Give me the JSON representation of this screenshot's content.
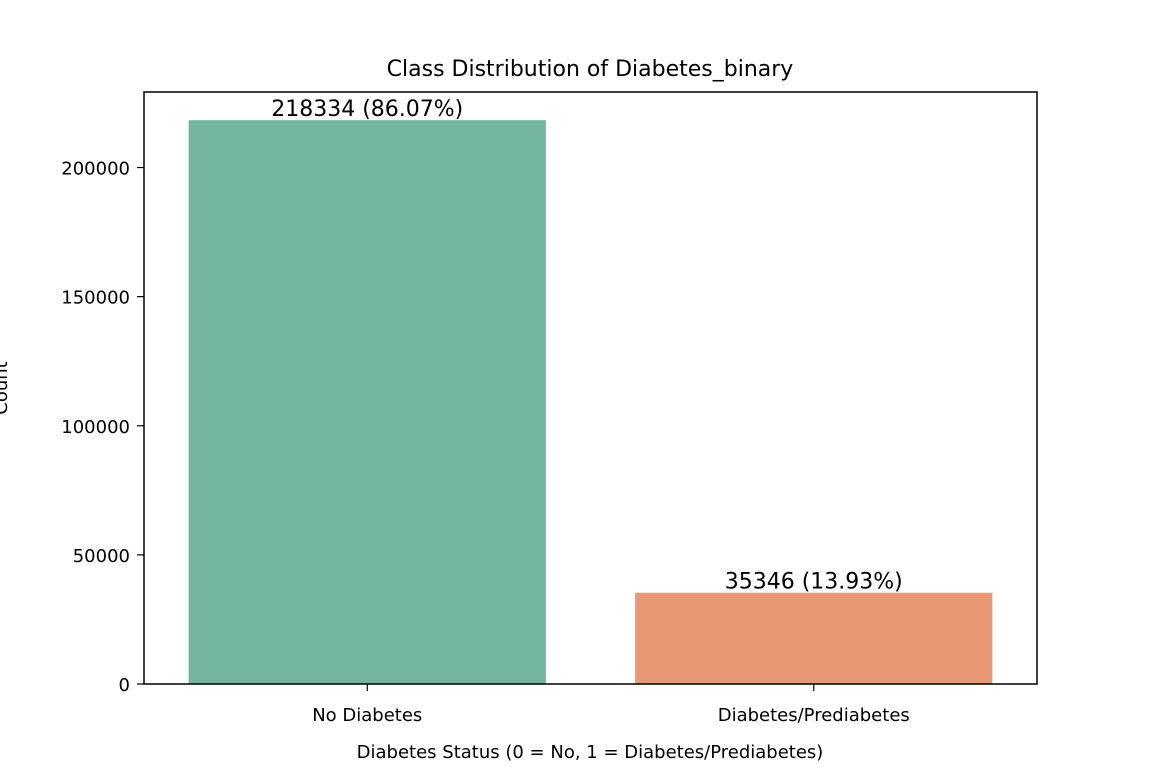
{
  "chart_data": {
    "type": "bar",
    "title": "Class Distribution of Diabetes_binary",
    "xlabel": "Diabetes Status (0 = No, 1 = Diabetes/Prediabetes)",
    "ylabel": "Count",
    "categories": [
      "No Diabetes",
      "Diabetes/Prediabetes"
    ],
    "values": [
      218334,
      35346
    ],
    "data_labels": [
      "218334 (86.07%)",
      "35346 (13.93%)"
    ],
    "colors": [
      "#73b5a0",
      "#e89874"
    ],
    "ylim": [
      0,
      229251
    ],
    "yticks": [
      0,
      50000,
      100000,
      150000,
      200000
    ],
    "ytick_labels": [
      "0",
      "50000",
      "100000",
      "150000",
      "200000"
    ],
    "grid": false,
    "legend": false
  }
}
